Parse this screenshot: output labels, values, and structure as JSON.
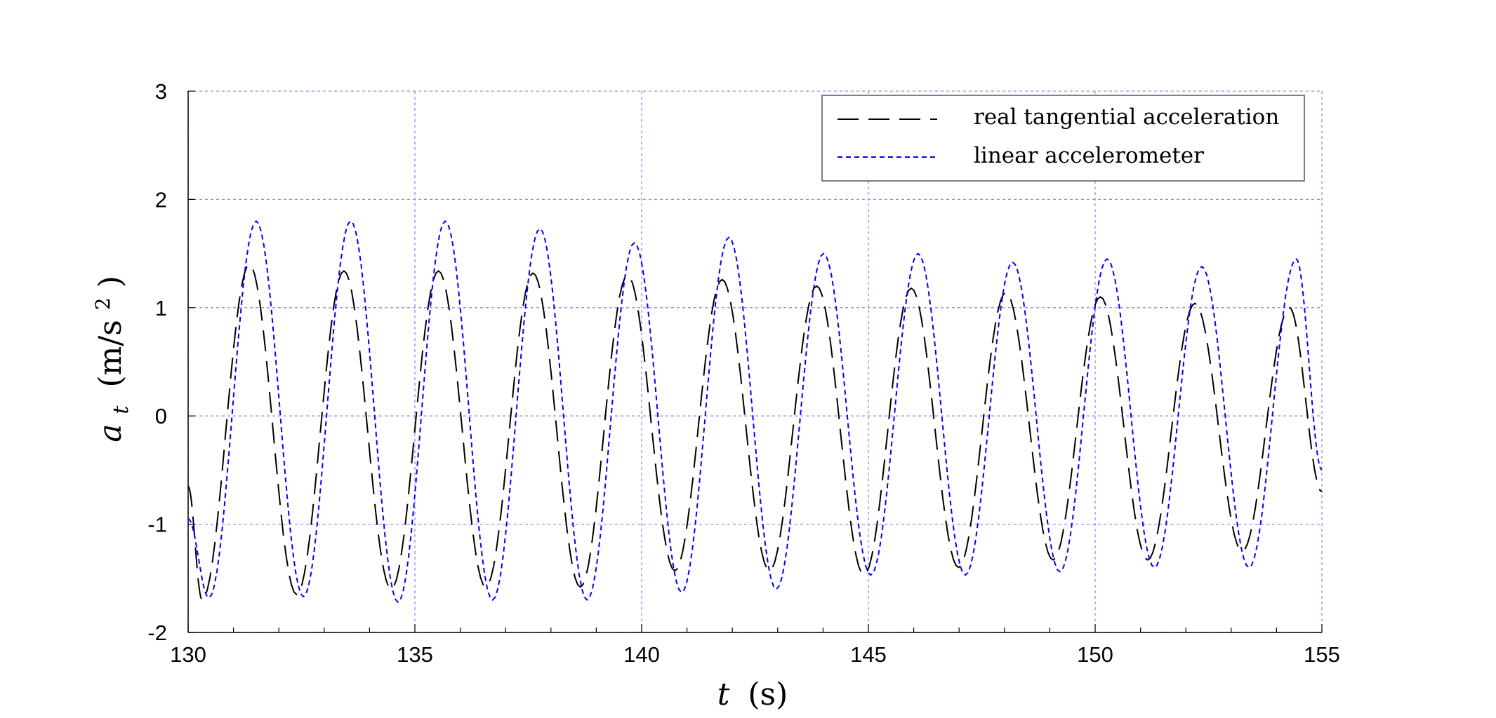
{
  "chart_data": {
    "type": "line",
    "xlabel_var": "t",
    "xlabel_unit": "(s)",
    "ylabel_var": "a",
    "ylabel_sub": "t",
    "ylabel_unit_open": "(m/s",
    "ylabel_unit_sup": "2",
    "ylabel_unit_close": ")",
    "xlim": [
      130,
      155
    ],
    "ylim": [
      -2,
      3
    ],
    "xticks": [
      "130",
      "135",
      "140",
      "145",
      "150",
      "155"
    ],
    "yticks": [
      "-2",
      "-1",
      "0",
      "1",
      "2",
      "3"
    ],
    "xtick_values": [
      130,
      135,
      140,
      145,
      150,
      155
    ],
    "ytick_values": [
      -2,
      -1,
      0,
      1,
      2,
      3
    ],
    "grid": true,
    "legend_position": "top-right",
    "colors": {
      "series_real": "#000000",
      "series_linear": "#0000ff",
      "grid": "#8c8cff",
      "axes": "#000000"
    },
    "series": [
      {
        "name": "real tangential acceleration",
        "style": "long-dash",
        "color": "#000000",
        "period": 2.085,
        "first_peak_t": 131.35,
        "peak_values": [
          1.4,
          1.34,
          1.34,
          1.32,
          1.3,
          1.26,
          1.2,
          1.18,
          1.14,
          1.1,
          1.04,
          1.0
        ],
        "trough_values": [
          -1.7,
          -1.65,
          -1.6,
          -1.58,
          -1.58,
          -1.43,
          -1.43,
          -1.47,
          -1.4,
          -1.33,
          -1.33,
          -1.25
        ],
        "start_value": -0.65,
        "end_value": -0.7
      },
      {
        "name": "linear accelerometer",
        "style": "short-dash",
        "color": "#0000ff",
        "period": 2.085,
        "first_peak_t": 131.5,
        "peak_values": [
          1.8,
          1.8,
          1.8,
          1.73,
          1.6,
          1.65,
          1.5,
          1.5,
          1.42,
          1.45,
          1.38,
          1.45
        ],
        "trough_values": [
          -1.68,
          -1.67,
          -1.72,
          -1.7,
          -1.7,
          -1.63,
          -1.6,
          -1.47,
          -1.47,
          -1.44,
          -1.4,
          -1.4
        ],
        "start_value": -0.95,
        "end_value": -0.5
      }
    ]
  }
}
